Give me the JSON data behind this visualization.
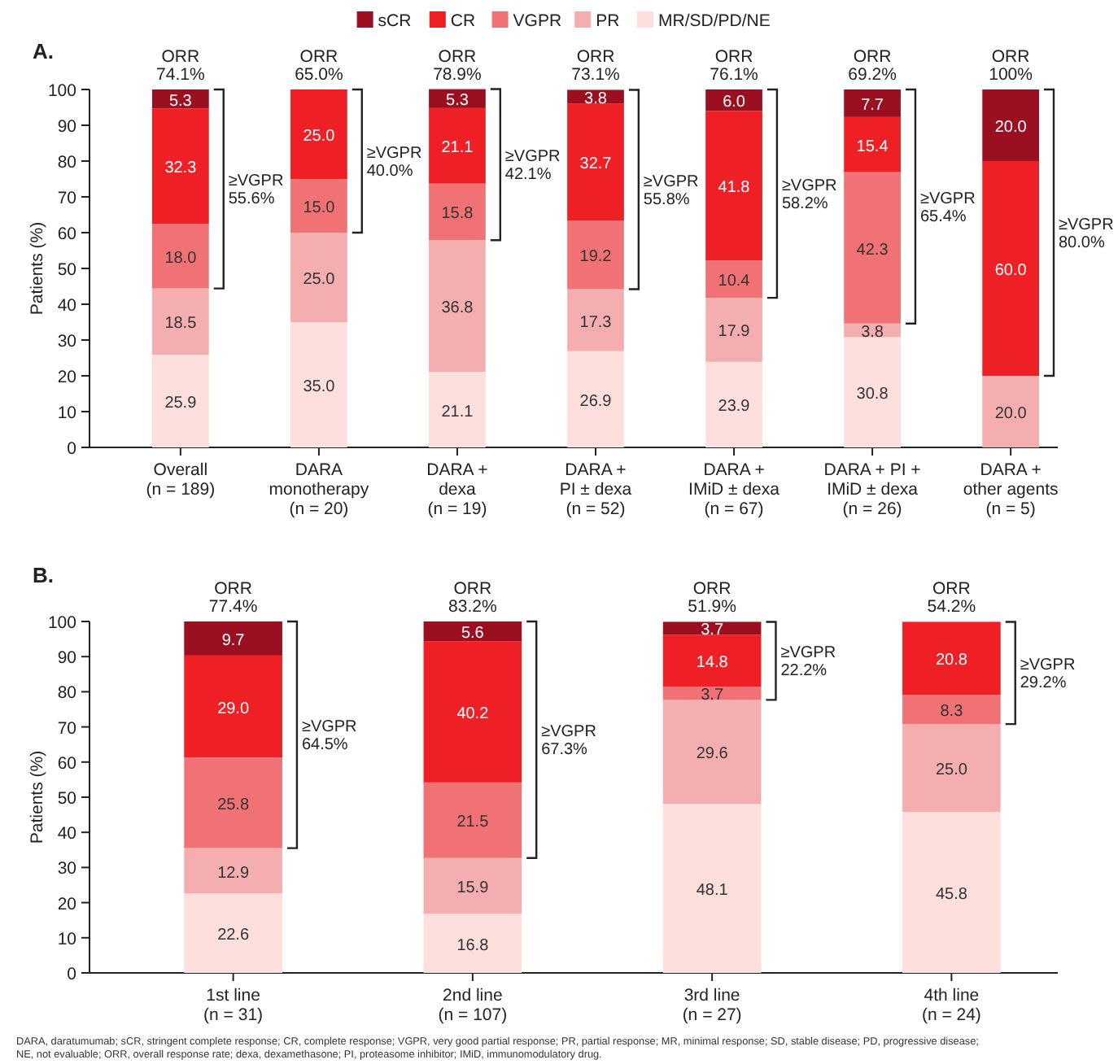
{
  "chart_data": [
    {
      "type": "bar",
      "stacked": true,
      "title": "A.",
      "ylabel": "Patients (%)",
      "legend": "top",
      "ylim": [
        0,
        100
      ],
      "yticks": [
        0,
        10,
        20,
        30,
        40,
        50,
        60,
        70,
        80,
        90,
        100
      ],
      "categories": [
        "Overall\n(n = 189)",
        "DARA\nmonotherapy\n(n = 20)",
        "DARA +\ndexa\n(n = 19)",
        "DARA +\nPI ± dexa\n(n = 52)",
        "DARA +\nIMiD ± dexa\n(n = 67)",
        "DARA + PI +\nIMiD ± dexa\n(n = 26)",
        "DARA +\nother agents\n(n = 5)"
      ],
      "series": [
        {
          "name": "MR/SD/PD/NE",
          "color": "#fde0dd",
          "values": [
            25.9,
            35.0,
            21.1,
            26.9,
            23.9,
            30.8,
            null
          ],
          "value_labels": [
            "25.9",
            "35.0",
            "21.1",
            "26.9",
            "23.9",
            "30.8",
            null
          ]
        },
        {
          "name": "PR",
          "color": "#f4aeb0",
          "values": [
            18.5,
            25.0,
            36.8,
            17.3,
            17.9,
            3.8,
            20.0
          ],
          "value_labels": [
            "18.5",
            "25.0",
            "36.8",
            "17.3",
            "17.9",
            "3.8",
            "20.0"
          ]
        },
        {
          "name": "VGPR",
          "color": "#f07275",
          "values": [
            18.0,
            15.0,
            15.8,
            19.2,
            10.4,
            42.3,
            null
          ],
          "value_labels": [
            "18.0",
            "15.0",
            "15.8",
            "19.2",
            "10.4",
            "42.3",
            null
          ]
        },
        {
          "name": "CR",
          "color": "#ee1f25",
          "values": [
            32.3,
            25.0,
            21.1,
            32.7,
            41.8,
            15.4,
            60.0
          ],
          "value_labels": [
            "32.3",
            "25.0",
            "21.1",
            "32.7",
            "41.8",
            "15.4",
            "60.0"
          ]
        },
        {
          "name": "sCR",
          "color": "#9b1020",
          "values": [
            5.3,
            null,
            5.3,
            3.8,
            6.0,
            7.7,
            20.0
          ],
          "value_labels": [
            "5.3",
            null,
            "5.3",
            "3.8",
            "6.0",
            "7.7",
            "20.0"
          ]
        }
      ],
      "annotations": [
        {
          "text": "ORR\n74.1%",
          "x": "Overall\n(n = 189)",
          "y": 100
        },
        {
          "text": "ORR\n65.0%",
          "x": "DARA\nmonotherapy\n(n = 20)",
          "y": 100
        },
        {
          "text": "ORR\n78.9%",
          "x": "DARA +\ndexa\n(n = 19)",
          "y": 100
        },
        {
          "text": "ORR\n73.1%",
          "x": "DARA +\nPI ± dexa\n(n = 52)",
          "y": 100
        },
        {
          "text": "ORR\n76.1%",
          "x": "DARA +\nIMiD ± dexa\n(n = 67)",
          "y": 100
        },
        {
          "text": "ORR\n69.2%",
          "x": "DARA + PI +\nIMiD ± dexa\n(n = 26)",
          "y": 100
        },
        {
          "text": "ORR\n100%",
          "x": "DARA +\nother agents\n(n = 5)",
          "y": 100
        },
        "≥VGPR\n55.6%",
        "≥VGPR\n40.0%",
        "≥VGPR\n42.1%",
        "≥VGPR\n55.8%",
        "≥VGPR\n58.2%",
        "≥VGPR\n65.4%",
        "≥VGPR\n80.0%"
      ]
    },
    {
      "type": "bar",
      "stacked": true,
      "title": "B.",
      "ylabel": "Patients (%)",
      "ylim": [
        0,
        100
      ],
      "yticks": [
        0,
        10,
        20,
        30,
        40,
        50,
        60,
        70,
        80,
        90,
        100
      ],
      "categories": [
        "1st line\n(n = 31)",
        "2nd line\n(n = 107)",
        "3rd line\n(n = 27)",
        "4th line\n(n = 24)"
      ],
      "series": [
        {
          "color": "#fde0dd",
          "values": [
            22.6,
            16.8,
            48.1,
            45.8
          ],
          "value_labels": [
            "22.6",
            "16.8",
            "48.1",
            "45.8"
          ]
        },
        {
          "color": "#f4aeb0",
          "values": [
            12.9,
            15.9,
            29.6,
            25.0
          ],
          "value_labels": [
            "12.9",
            "15.9",
            "29.6",
            "25.0"
          ]
        },
        {
          "color": "#f07275",
          "values": [
            25.8,
            21.5,
            3.7,
            8.3
          ],
          "value_labels": [
            "25.8",
            "21.5",
            "3.7",
            "8.3"
          ]
        },
        {
          "color": "#ee1f25",
          "values": [
            29.0,
            40.2,
            14.8,
            20.8
          ],
          "value_labels": [
            "29.0",
            "40.2",
            "14.8",
            "20.8"
          ]
        },
        {
          "color": "#9b1020",
          "values": [
            9.7,
            5.6,
            3.7,
            null
          ],
          "value_labels": [
            "9.7",
            "5.6",
            "3.7",
            null
          ]
        }
      ],
      "annotations": [
        {
          "text": "ORR\n77.4%",
          "x": "1st line\n(n = 31)",
          "y": 100
        },
        {
          "text": "ORR\n83.2%",
          "x": "2nd line\n(n = 107)",
          "y": 100
        },
        {
          "text": "ORR\n51.9%",
          "x": "3rd line\n(n = 27)",
          "y": 100
        },
        {
          "text": "ORR\n54.2%",
          "x": "4th line\n(n = 24)",
          "y": 100
        },
        "≥VGPR\n64.5%",
        "≥VGPR\n67.3%",
        "≥VGPR\n22.2%",
        "≥VGPR\n29.2%",
        "DARA, daratumumab; sCR, stringent complete response; CR, complete response; VGPR, very good partial response; PR, partial response; MR, minimal response; SD, stable disease; PD, progressive disease; NE, not evaluable; ORR, overall response rate; dexa, dexamethasone; PI, proteasome inhibitor; IMiD, immunomodulatory drug."
      ]
    }
  ]
}
